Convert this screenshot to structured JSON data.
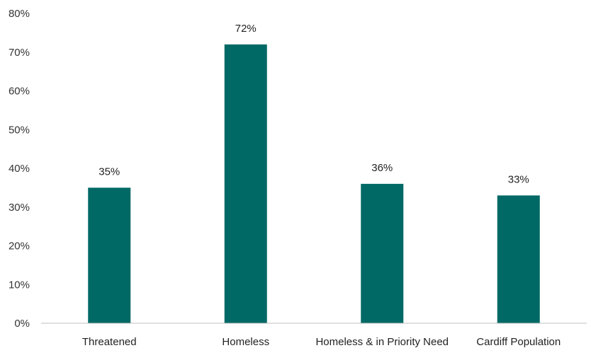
{
  "chart_data": {
    "type": "bar",
    "title": "",
    "xlabel": "",
    "ylabel": "",
    "categories": [
      "Threatened",
      "Homeless",
      "Homeless & in Priority Need",
      "Cardiff Population"
    ],
    "values": [
      35,
      72,
      36,
      33
    ],
    "data_labels": [
      "35%",
      "72%",
      "36%",
      "33%"
    ],
    "ylim": [
      0,
      80
    ],
    "yticks": [
      0,
      10,
      20,
      30,
      40,
      50,
      60,
      70,
      80
    ],
    "ytick_labels": [
      "0%",
      "10%",
      "20%",
      "30%",
      "40%",
      "50%",
      "60%",
      "70%",
      "80%"
    ],
    "bar_color": "#006966",
    "grid": false,
    "legend": "none"
  }
}
